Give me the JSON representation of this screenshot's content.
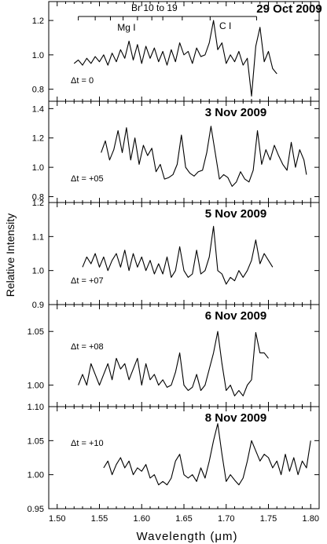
{
  "figure": {
    "ylabel": "Relative Intensity",
    "xlabel": "Wavelength (μm)",
    "x_ticks": [
      "1.50",
      "1.55",
      "1.60",
      "1.65",
      "1.70",
      "1.75",
      "1.80"
    ],
    "line_labels": {
      "brackett": "Br 10 to 19",
      "mg": "Mg I",
      "c": "C I"
    }
  },
  "chart_data": [
    {
      "type": "line",
      "date": "29 Oct 2009",
      "delta_t": "Δt = 0",
      "xlim": [
        1.49,
        1.81
      ],
      "ylim": [
        0.73,
        1.31
      ],
      "y_ticks": [
        "0.8",
        "1.0",
        "1.2"
      ],
      "y_tick_values": [
        0.8,
        1.0,
        1.2
      ],
      "series": [
        {
          "x": [
            1.52,
            1.525,
            1.53,
            1.535,
            1.54,
            1.545,
            1.55,
            1.555,
            1.56,
            1.565,
            1.57,
            1.575,
            1.58,
            1.585,
            1.59,
            1.595,
            1.6,
            1.605,
            1.61,
            1.615,
            1.62,
            1.625,
            1.63,
            1.635,
            1.64,
            1.645,
            1.65,
            1.655,
            1.66,
            1.665,
            1.67,
            1.675,
            1.68,
            1.685,
            1.69,
            1.695,
            1.7,
            1.705,
            1.71,
            1.715,
            1.72,
            1.725,
            1.73,
            1.735,
            1.74,
            1.745,
            1.75,
            1.755,
            1.76
          ],
          "values": [
            0.95,
            0.97,
            0.94,
            0.98,
            0.95,
            0.99,
            0.96,
            1.0,
            0.94,
            1.01,
            0.96,
            1.03,
            0.98,
            1.08,
            0.97,
            1.06,
            0.95,
            1.05,
            0.98,
            1.04,
            0.96,
            1.02,
            0.94,
            1.03,
            0.96,
            1.07,
            1.0,
            1.02,
            0.95,
            1.04,
            0.99,
            1.0,
            1.07,
            1.2,
            1.03,
            1.07,
            0.95,
            1.0,
            0.96,
            1.02,
            0.94,
            0.98,
            0.76,
            1.05,
            1.16,
            0.96,
            1.02,
            0.92,
            0.89
          ]
        }
      ]
    },
    {
      "type": "line",
      "date": "3 Nov 2009",
      "delta_t": "Δt = +05",
      "xlim": [
        1.49,
        1.81
      ],
      "ylim": [
        0.76,
        1.45
      ],
      "y_ticks": [
        "0.8",
        "1.0",
        "1.2",
        "1.4"
      ],
      "y_tick_values": [
        0.8,
        1.0,
        1.2,
        1.4
      ],
      "series": [
        {
          "x": [
            1.552,
            1.557,
            1.562,
            1.567,
            1.572,
            1.577,
            1.582,
            1.587,
            1.592,
            1.597,
            1.602,
            1.607,
            1.612,
            1.617,
            1.622,
            1.627,
            1.632,
            1.637,
            1.642,
            1.647,
            1.652,
            1.657,
            1.662,
            1.667,
            1.672,
            1.677,
            1.682,
            1.687,
            1.692,
            1.697,
            1.702,
            1.707,
            1.712,
            1.717,
            1.722,
            1.727,
            1.732,
            1.737,
            1.742,
            1.747,
            1.752,
            1.757,
            1.762,
            1.767,
            1.772,
            1.777,
            1.782,
            1.787,
            1.792,
            1.795
          ],
          "values": [
            1.1,
            1.18,
            1.05,
            1.12,
            1.25,
            1.1,
            1.27,
            1.05,
            1.2,
            1.02,
            1.15,
            1.08,
            1.13,
            0.97,
            1.02,
            0.92,
            0.93,
            0.95,
            1.02,
            1.22,
            1.0,
            0.96,
            0.94,
            0.97,
            0.98,
            1.1,
            1.28,
            1.1,
            0.92,
            0.95,
            0.93,
            0.87,
            0.9,
            0.97,
            0.92,
            0.9,
            0.98,
            1.25,
            1.02,
            1.12,
            1.05,
            1.15,
            1.08,
            1.02,
            0.98,
            1.17,
            1.0,
            1.12,
            1.05,
            0.95
          ]
        }
      ]
    },
    {
      "type": "line",
      "date": "5 Nov 2009",
      "delta_t": "Δt = +07",
      "xlim": [
        1.49,
        1.81
      ],
      "ylim": [
        0.9,
        1.2
      ],
      "y_ticks": [
        "0.9",
        "1.0",
        "1.1",
        "1.2"
      ],
      "y_tick_values": [
        0.9,
        1.0,
        1.1,
        1.2
      ],
      "series": [
        {
          "x": [
            1.53,
            1.535,
            1.54,
            1.545,
            1.55,
            1.555,
            1.56,
            1.565,
            1.57,
            1.575,
            1.58,
            1.585,
            1.59,
            1.595,
            1.6,
            1.605,
            1.61,
            1.615,
            1.62,
            1.625,
            1.63,
            1.635,
            1.64,
            1.645,
            1.65,
            1.655,
            1.66,
            1.665,
            1.67,
            1.675,
            1.68,
            1.685,
            1.69,
            1.695,
            1.7,
            1.705,
            1.71,
            1.715,
            1.72,
            1.725,
            1.73,
            1.735,
            1.74,
            1.745,
            1.75,
            1.755
          ],
          "values": [
            1.01,
            1.04,
            1.02,
            1.05,
            1.01,
            1.04,
            1.0,
            1.03,
            1.05,
            1.01,
            1.06,
            1.0,
            1.05,
            1.01,
            1.04,
            1.0,
            1.03,
            0.99,
            1.02,
            0.99,
            1.04,
            0.98,
            1.0,
            1.07,
            1.0,
            0.98,
            0.99,
            1.06,
            0.99,
            1.0,
            1.04,
            1.13,
            1.0,
            0.99,
            0.96,
            0.98,
            0.97,
            1.0,
            0.98,
            1.0,
            1.03,
            1.09,
            1.02,
            1.05,
            1.03,
            1.01
          ]
        }
      ]
    },
    {
      "type": "line",
      "date": "6 Nov 2009",
      "delta_t": "Δt = +08",
      "xlim": [
        1.49,
        1.81
      ],
      "ylim": [
        0.98,
        1.075
      ],
      "y_ticks": [
        "1.00",
        "1.05"
      ],
      "y_tick_values": [
        1.0,
        1.05
      ],
      "series": [
        {
          "x": [
            1.525,
            1.53,
            1.535,
            1.54,
            1.545,
            1.55,
            1.555,
            1.56,
            1.565,
            1.57,
            1.575,
            1.58,
            1.585,
            1.59,
            1.595,
            1.6,
            1.605,
            1.61,
            1.615,
            1.62,
            1.625,
            1.63,
            1.635,
            1.64,
            1.645,
            1.65,
            1.655,
            1.66,
            1.665,
            1.67,
            1.675,
            1.68,
            1.685,
            1.69,
            1.695,
            1.7,
            1.705,
            1.71,
            1.715,
            1.72,
            1.725,
            1.73,
            1.735,
            1.74,
            1.745,
            1.75
          ],
          "values": [
            1.0,
            1.01,
            1.0,
            1.02,
            1.01,
            1.0,
            1.01,
            1.02,
            1.005,
            1.025,
            1.015,
            1.02,
            1.005,
            1.015,
            1.025,
            1.0,
            1.02,
            1.005,
            1.01,
            1.0,
            1.005,
            0.998,
            1.0,
            1.012,
            1.03,
            1.0,
            0.995,
            0.998,
            1.01,
            0.995,
            1.0,
            1.015,
            1.03,
            1.05,
            1.02,
            0.995,
            1.0,
            0.99,
            0.995,
            0.99,
            1.0,
            1.005,
            1.049,
            1.03,
            1.03,
            1.025
          ]
        }
      ]
    },
    {
      "type": "line",
      "date": "8 Nov 2009",
      "delta_t": "Δt = +10",
      "xlim": [
        1.49,
        1.81
      ],
      "ylim": [
        0.95,
        1.1
      ],
      "y_ticks": [
        "0.95",
        "1.00",
        "1.05",
        "1.10"
      ],
      "y_tick_values": [
        0.95,
        1.0,
        1.05,
        1.1
      ],
      "series": [
        {
          "x": [
            1.555,
            1.56,
            1.565,
            1.57,
            1.575,
            1.58,
            1.585,
            1.59,
            1.595,
            1.6,
            1.605,
            1.61,
            1.615,
            1.62,
            1.625,
            1.63,
            1.635,
            1.64,
            1.645,
            1.65,
            1.655,
            1.66,
            1.665,
            1.67,
            1.675,
            1.68,
            1.685,
            1.69,
            1.695,
            1.7,
            1.705,
            1.71,
            1.715,
            1.72,
            1.725,
            1.73,
            1.735,
            1.74,
            1.745,
            1.75,
            1.755,
            1.76,
            1.765,
            1.77,
            1.775,
            1.78,
            1.785,
            1.79,
            1.795,
            1.8
          ],
          "values": [
            1.01,
            1.02,
            1.0,
            1.015,
            1.025,
            1.01,
            1.02,
            1.0,
            1.01,
            1.005,
            1.015,
            0.995,
            1.0,
            0.985,
            0.99,
            0.985,
            0.995,
            1.02,
            1.03,
            1.0,
            0.995,
            1.0,
            0.99,
            1.01,
            0.995,
            1.02,
            1.05,
            1.075,
            1.03,
            0.99,
            1.0,
            0.992,
            0.985,
            0.995,
            1.02,
            1.05,
            1.035,
            1.02,
            1.03,
            1.025,
            1.01,
            1.02,
            1.0,
            1.03,
            1.005,
            1.025,
            1.0,
            1.02,
            1.01,
            1.05
          ]
        }
      ]
    }
  ]
}
